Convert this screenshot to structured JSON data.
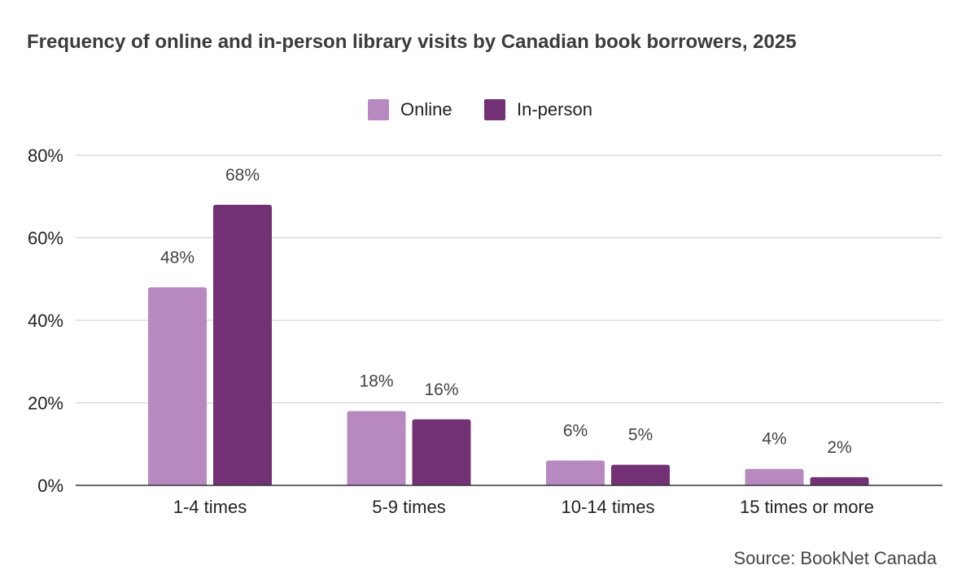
{
  "chart_data": {
    "type": "bar",
    "title": "Frequency of online and in-person library visits by Canadian book borrowers, 2025",
    "categories": [
      "1-4 times",
      "5-9 times",
      "10-14 times",
      "15 times or more"
    ],
    "series": [
      {
        "name": "Online",
        "values": [
          48,
          18,
          6,
          4
        ],
        "color": "#b889c0"
      },
      {
        "name": "In-person",
        "values": [
          68,
          16,
          5,
          2
        ],
        "color": "#723174"
      }
    ],
    "ylim": [
      0,
      80
    ],
    "yticks": [
      "0%",
      "20%",
      "40%",
      "60%",
      "80%"
    ],
    "value_suffix": "%",
    "grid": true,
    "legend_position": "top-center",
    "source": "Source: BookNet Canada"
  }
}
